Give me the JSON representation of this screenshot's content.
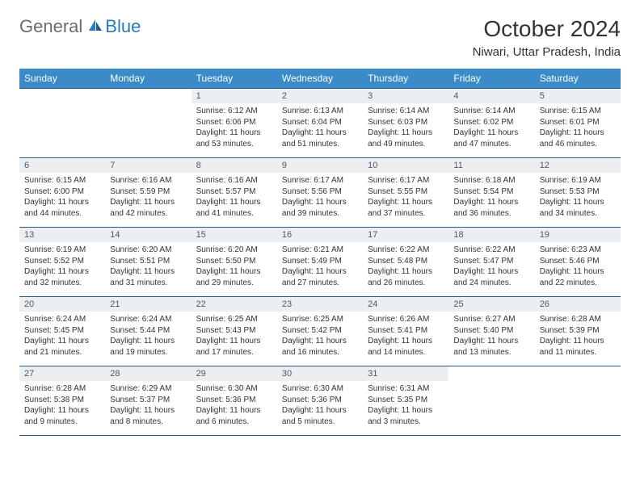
{
  "logo": {
    "part1": "General",
    "part2": "Blue"
  },
  "title": "October 2024",
  "location": "Niwari, Uttar Pradesh, India",
  "colors": {
    "header_bg": "#3b8bca",
    "header_text": "#ffffff",
    "daynum_bg": "#eceff1",
    "border": "#2a5a8a",
    "logo_gray": "#6a6a6a",
    "logo_blue": "#2a7ac0"
  },
  "dow": [
    "Sunday",
    "Monday",
    "Tuesday",
    "Wednesday",
    "Thursday",
    "Friday",
    "Saturday"
  ],
  "weeks": [
    [
      null,
      null,
      {
        "n": "1",
        "sr": "Sunrise: 6:12 AM",
        "ss": "Sunset: 6:06 PM",
        "dl": "Daylight: 11 hours and 53 minutes."
      },
      {
        "n": "2",
        "sr": "Sunrise: 6:13 AM",
        "ss": "Sunset: 6:04 PM",
        "dl": "Daylight: 11 hours and 51 minutes."
      },
      {
        "n": "3",
        "sr": "Sunrise: 6:14 AM",
        "ss": "Sunset: 6:03 PM",
        "dl": "Daylight: 11 hours and 49 minutes."
      },
      {
        "n": "4",
        "sr": "Sunrise: 6:14 AM",
        "ss": "Sunset: 6:02 PM",
        "dl": "Daylight: 11 hours and 47 minutes."
      },
      {
        "n": "5",
        "sr": "Sunrise: 6:15 AM",
        "ss": "Sunset: 6:01 PM",
        "dl": "Daylight: 11 hours and 46 minutes."
      }
    ],
    [
      {
        "n": "6",
        "sr": "Sunrise: 6:15 AM",
        "ss": "Sunset: 6:00 PM",
        "dl": "Daylight: 11 hours and 44 minutes."
      },
      {
        "n": "7",
        "sr": "Sunrise: 6:16 AM",
        "ss": "Sunset: 5:59 PM",
        "dl": "Daylight: 11 hours and 42 minutes."
      },
      {
        "n": "8",
        "sr": "Sunrise: 6:16 AM",
        "ss": "Sunset: 5:57 PM",
        "dl": "Daylight: 11 hours and 41 minutes."
      },
      {
        "n": "9",
        "sr": "Sunrise: 6:17 AM",
        "ss": "Sunset: 5:56 PM",
        "dl": "Daylight: 11 hours and 39 minutes."
      },
      {
        "n": "10",
        "sr": "Sunrise: 6:17 AM",
        "ss": "Sunset: 5:55 PM",
        "dl": "Daylight: 11 hours and 37 minutes."
      },
      {
        "n": "11",
        "sr": "Sunrise: 6:18 AM",
        "ss": "Sunset: 5:54 PM",
        "dl": "Daylight: 11 hours and 36 minutes."
      },
      {
        "n": "12",
        "sr": "Sunrise: 6:19 AM",
        "ss": "Sunset: 5:53 PM",
        "dl": "Daylight: 11 hours and 34 minutes."
      }
    ],
    [
      {
        "n": "13",
        "sr": "Sunrise: 6:19 AM",
        "ss": "Sunset: 5:52 PM",
        "dl": "Daylight: 11 hours and 32 minutes."
      },
      {
        "n": "14",
        "sr": "Sunrise: 6:20 AM",
        "ss": "Sunset: 5:51 PM",
        "dl": "Daylight: 11 hours and 31 minutes."
      },
      {
        "n": "15",
        "sr": "Sunrise: 6:20 AM",
        "ss": "Sunset: 5:50 PM",
        "dl": "Daylight: 11 hours and 29 minutes."
      },
      {
        "n": "16",
        "sr": "Sunrise: 6:21 AM",
        "ss": "Sunset: 5:49 PM",
        "dl": "Daylight: 11 hours and 27 minutes."
      },
      {
        "n": "17",
        "sr": "Sunrise: 6:22 AM",
        "ss": "Sunset: 5:48 PM",
        "dl": "Daylight: 11 hours and 26 minutes."
      },
      {
        "n": "18",
        "sr": "Sunrise: 6:22 AM",
        "ss": "Sunset: 5:47 PM",
        "dl": "Daylight: 11 hours and 24 minutes."
      },
      {
        "n": "19",
        "sr": "Sunrise: 6:23 AM",
        "ss": "Sunset: 5:46 PM",
        "dl": "Daylight: 11 hours and 22 minutes."
      }
    ],
    [
      {
        "n": "20",
        "sr": "Sunrise: 6:24 AM",
        "ss": "Sunset: 5:45 PM",
        "dl": "Daylight: 11 hours and 21 minutes."
      },
      {
        "n": "21",
        "sr": "Sunrise: 6:24 AM",
        "ss": "Sunset: 5:44 PM",
        "dl": "Daylight: 11 hours and 19 minutes."
      },
      {
        "n": "22",
        "sr": "Sunrise: 6:25 AM",
        "ss": "Sunset: 5:43 PM",
        "dl": "Daylight: 11 hours and 17 minutes."
      },
      {
        "n": "23",
        "sr": "Sunrise: 6:25 AM",
        "ss": "Sunset: 5:42 PM",
        "dl": "Daylight: 11 hours and 16 minutes."
      },
      {
        "n": "24",
        "sr": "Sunrise: 6:26 AM",
        "ss": "Sunset: 5:41 PM",
        "dl": "Daylight: 11 hours and 14 minutes."
      },
      {
        "n": "25",
        "sr": "Sunrise: 6:27 AM",
        "ss": "Sunset: 5:40 PM",
        "dl": "Daylight: 11 hours and 13 minutes."
      },
      {
        "n": "26",
        "sr": "Sunrise: 6:28 AM",
        "ss": "Sunset: 5:39 PM",
        "dl": "Daylight: 11 hours and 11 minutes."
      }
    ],
    [
      {
        "n": "27",
        "sr": "Sunrise: 6:28 AM",
        "ss": "Sunset: 5:38 PM",
        "dl": "Daylight: 11 hours and 9 minutes."
      },
      {
        "n": "28",
        "sr": "Sunrise: 6:29 AM",
        "ss": "Sunset: 5:37 PM",
        "dl": "Daylight: 11 hours and 8 minutes."
      },
      {
        "n": "29",
        "sr": "Sunrise: 6:30 AM",
        "ss": "Sunset: 5:36 PM",
        "dl": "Daylight: 11 hours and 6 minutes."
      },
      {
        "n": "30",
        "sr": "Sunrise: 6:30 AM",
        "ss": "Sunset: 5:36 PM",
        "dl": "Daylight: 11 hours and 5 minutes."
      },
      {
        "n": "31",
        "sr": "Sunrise: 6:31 AM",
        "ss": "Sunset: 5:35 PM",
        "dl": "Daylight: 11 hours and 3 minutes."
      },
      null,
      null
    ]
  ]
}
